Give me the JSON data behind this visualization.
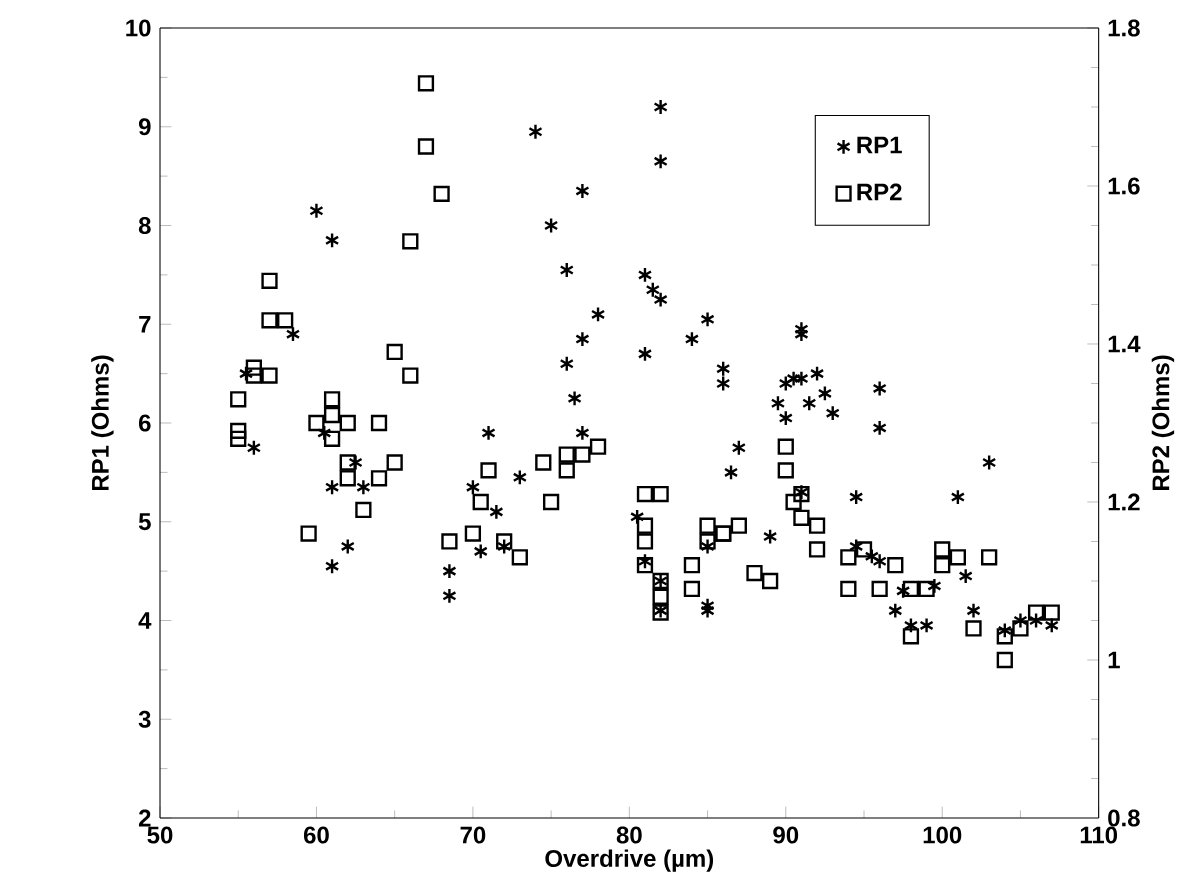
{
  "chart_data": {
    "type": "scatter",
    "xlabel": "Overdrive (µm)",
    "ylabel": "RP1 (Ohms)",
    "y2label": "RP2 (Ohms)",
    "xlim": [
      50,
      110
    ],
    "xticks": [
      50,
      60,
      70,
      80,
      90,
      100,
      110
    ],
    "ylim": [
      2,
      10
    ],
    "yticks": [
      2,
      3,
      4,
      5,
      6,
      7,
      8,
      9,
      10
    ],
    "y2lim": [
      0.8,
      1.8
    ],
    "y2ticks": [
      0.8,
      1,
      1.2,
      1.4,
      1.6,
      1.8
    ],
    "grid": false,
    "legend": "top right",
    "series": [
      {
        "name": "RP1",
        "color": "#000000",
        "marker": "cross",
        "x": [
          55.5,
          56,
          58.5,
          60,
          61,
          60.5,
          61,
          62,
          61,
          63,
          62.5,
          68.5,
          68.5,
          70,
          71,
          70.5,
          71.5,
          72,
          73,
          74,
          75,
          76,
          77,
          76.5,
          76,
          77,
          78,
          77,
          81,
          81.5,
          82,
          82,
          82,
          81,
          80.5,
          81,
          82,
          82,
          84,
          85,
          86,
          86,
          86.5,
          87,
          85,
          85,
          85,
          89,
          90,
          90.5,
          91,
          91,
          91,
          92,
          92.5,
          91.5,
          93,
          89.5,
          90,
          91,
          96,
          96,
          94.5,
          96,
          97,
          97.5,
          98,
          99,
          99.5,
          101,
          101.5,
          103,
          102,
          104,
          105,
          106,
          107,
          94.5,
          95.5
        ],
        "values": [
          6.5,
          5.75,
          6.9,
          8.15,
          7.85,
          5.9,
          4.55,
          4.75,
          5.35,
          5.35,
          5.6,
          4.25,
          4.5,
          5.35,
          5.9,
          4.7,
          5.1,
          4.75,
          5.45,
          8.95,
          8.0,
          7.55,
          8.35,
          6.25,
          6.6,
          6.85,
          7.1,
          5.9,
          7.5,
          7.35,
          7.25,
          9.2,
          8.65,
          6.7,
          5.05,
          4.6,
          4.4,
          4.1,
          6.85,
          7.05,
          6.55,
          6.4,
          5.5,
          5.75,
          4.75,
          4.1,
          4.15,
          4.85,
          6.4,
          6.45,
          6.95,
          6.9,
          6.45,
          6.5,
          6.3,
          6.2,
          6.1,
          6.2,
          6.05,
          5.3,
          6.35,
          5.95,
          5.25,
          4.6,
          4.1,
          4.3,
          3.95,
          3.95,
          4.35,
          5.25,
          4.45,
          5.6,
          4.1,
          3.9,
          4.0,
          4.0,
          3.95,
          4.75,
          4.65
        ]
      },
      {
        "name": "RP2",
        "color": "#000000",
        "marker": "square",
        "axis": "y2",
        "x": [
          55,
          55,
          55,
          56,
          56,
          57,
          57,
          58,
          57,
          59.5,
          60,
          61,
          61,
          61,
          62,
          62,
          62,
          63,
          64,
          64,
          65,
          65,
          66,
          66,
          67,
          67,
          68,
          68.5,
          70,
          70.5,
          71,
          72,
          73,
          74.5,
          75,
          76,
          76,
          77,
          78,
          81,
          81,
          81,
          81,
          82,
          82,
          82,
          82,
          84,
          84,
          85,
          85,
          86,
          86,
          87,
          88,
          89,
          90,
          90,
          90.5,
          91,
          91,
          92,
          92,
          94,
          94,
          95,
          96,
          97,
          98,
          98,
          99,
          100,
          100,
          101,
          102,
          103,
          104,
          104,
          105,
          106,
          107
        ],
        "values": [
          1.33,
          1.29,
          1.28,
          1.37,
          1.36,
          1.48,
          1.43,
          1.43,
          1.36,
          1.16,
          1.3,
          1.33,
          1.31,
          1.28,
          1.3,
          1.25,
          1.23,
          1.19,
          1.23,
          1.3,
          1.25,
          1.39,
          1.53,
          1.36,
          1.65,
          1.73,
          1.59,
          1.15,
          1.16,
          1.2,
          1.24,
          1.15,
          1.13,
          1.25,
          1.2,
          1.24,
          1.26,
          1.26,
          1.27,
          1.21,
          1.17,
          1.15,
          1.12,
          1.21,
          1.1,
          1.06,
          1.08,
          1.09,
          1.12,
          1.15,
          1.17,
          1.16,
          1.16,
          1.17,
          1.11,
          1.1,
          1.27,
          1.24,
          1.2,
          1.21,
          1.18,
          1.17,
          1.14,
          1.13,
          1.09,
          1.14,
          1.09,
          1.12,
          1.03,
          1.09,
          1.09,
          1.12,
          1.14,
          1.13,
          1.04,
          1.13,
          1.03,
          1.0,
          1.04,
          1.06,
          1.06
        ]
      }
    ]
  }
}
